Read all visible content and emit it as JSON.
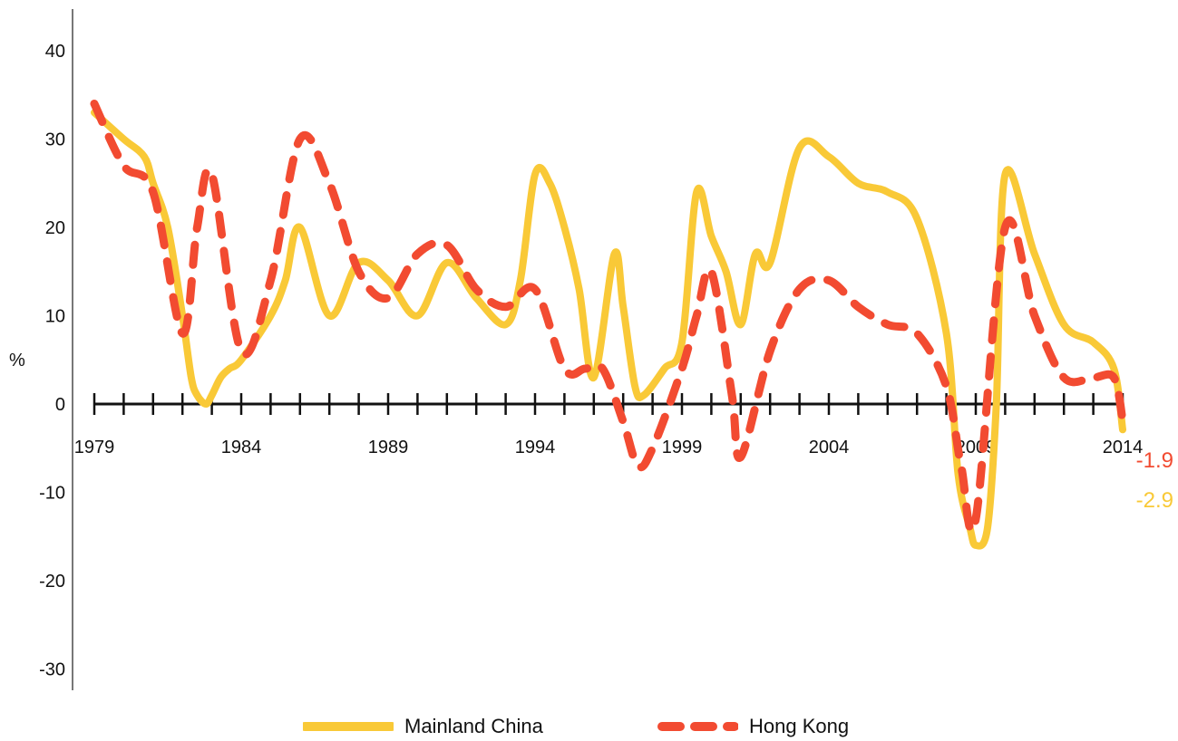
{
  "chart_data": {
    "type": "line",
    "title": "",
    "xlabel": "",
    "ylabel": "%",
    "ylim": [
      -30,
      45
    ],
    "yticks": [
      -30,
      -20,
      -10,
      0,
      10,
      20,
      30,
      40
    ],
    "xlim": [
      1979,
      2014
    ],
    "xtick_labels": [
      1979,
      1984,
      1989,
      1994,
      1999,
      2004,
      2009,
      2014
    ],
    "grid": false,
    "legend": "bottom",
    "series": [
      {
        "name": "Mainland China",
        "color": "#f9c937",
        "style": "solid",
        "x": [
          1979,
          1980,
          1980.7,
          1981,
          1981.5,
          1982,
          1982.3,
          1982.5,
          1982.8,
          1983,
          1983.3,
          1983.6,
          1984,
          1985,
          1985.5,
          1986,
          1987,
          1988,
          1989,
          1990,
          1991,
          1992,
          1993,
          1993.5,
          1994,
          1994.5,
          1995,
          1995.5,
          1996,
          1996.7,
          1997,
          1997.4,
          1997.7,
          1998.4,
          1999,
          1999.5,
          2000,
          2000.5,
          2001,
          2001.5,
          2002,
          2003,
          2004,
          2005,
          2006,
          2007,
          2008,
          2008.4,
          2008.8,
          2009,
          2009.4,
          2009.7,
          2010,
          2011,
          2012,
          2013,
          2013.7,
          2014
        ],
        "values": [
          33,
          30,
          28,
          25,
          20,
          10,
          3,
          1,
          0,
          1,
          3,
          4,
          5,
          10,
          14,
          20,
          10,
          16,
          14,
          10,
          16,
          12,
          9,
          14,
          26,
          25,
          20,
          13,
          3,
          17,
          11,
          2,
          1,
          4,
          7,
          24,
          19,
          15,
          9,
          17,
          16,
          29,
          28,
          25,
          24,
          21,
          8,
          -8,
          -14,
          -16,
          -14,
          0,
          26,
          17,
          9,
          7,
          4,
          -2.9
        ]
      },
      {
        "name": "Hong Kong",
        "color": "#f24b31",
        "style": "dashed",
        "x": [
          1979,
          1980,
          1981,
          1982,
          1982.5,
          1983,
          1984,
          1985,
          1986,
          1987,
          1988,
          1989,
          1990,
          1991,
          1992,
          1993,
          1994,
          1995,
          1995.7,
          1996.3,
          1997,
          1997.5,
          1998,
          1999,
          1999.5,
          2000,
          2000.7,
          2001,
          2002,
          2003,
          2004,
          2005,
          2006,
          2007,
          2008,
          2008.5,
          2009,
          2010,
          2011,
          2012,
          2013,
          2013.7,
          2014
        ],
        "values": [
          34,
          27,
          24,
          8,
          20,
          26,
          6,
          14,
          30,
          25,
          15,
          12,
          17,
          18,
          13,
          11,
          13,
          4,
          4,
          4,
          -2,
          -7,
          -5,
          4,
          10,
          15,
          1,
          -6,
          6,
          13,
          14,
          11,
          9,
          8,
          2,
          -7,
          -13,
          20,
          10,
          3,
          3,
          3,
          -1.9
        ]
      }
    ],
    "annotations": [
      {
        "text": "-1.9",
        "series": "Hong Kong"
      },
      {
        "text": "-2.9",
        "series": "Mainland China"
      }
    ]
  }
}
